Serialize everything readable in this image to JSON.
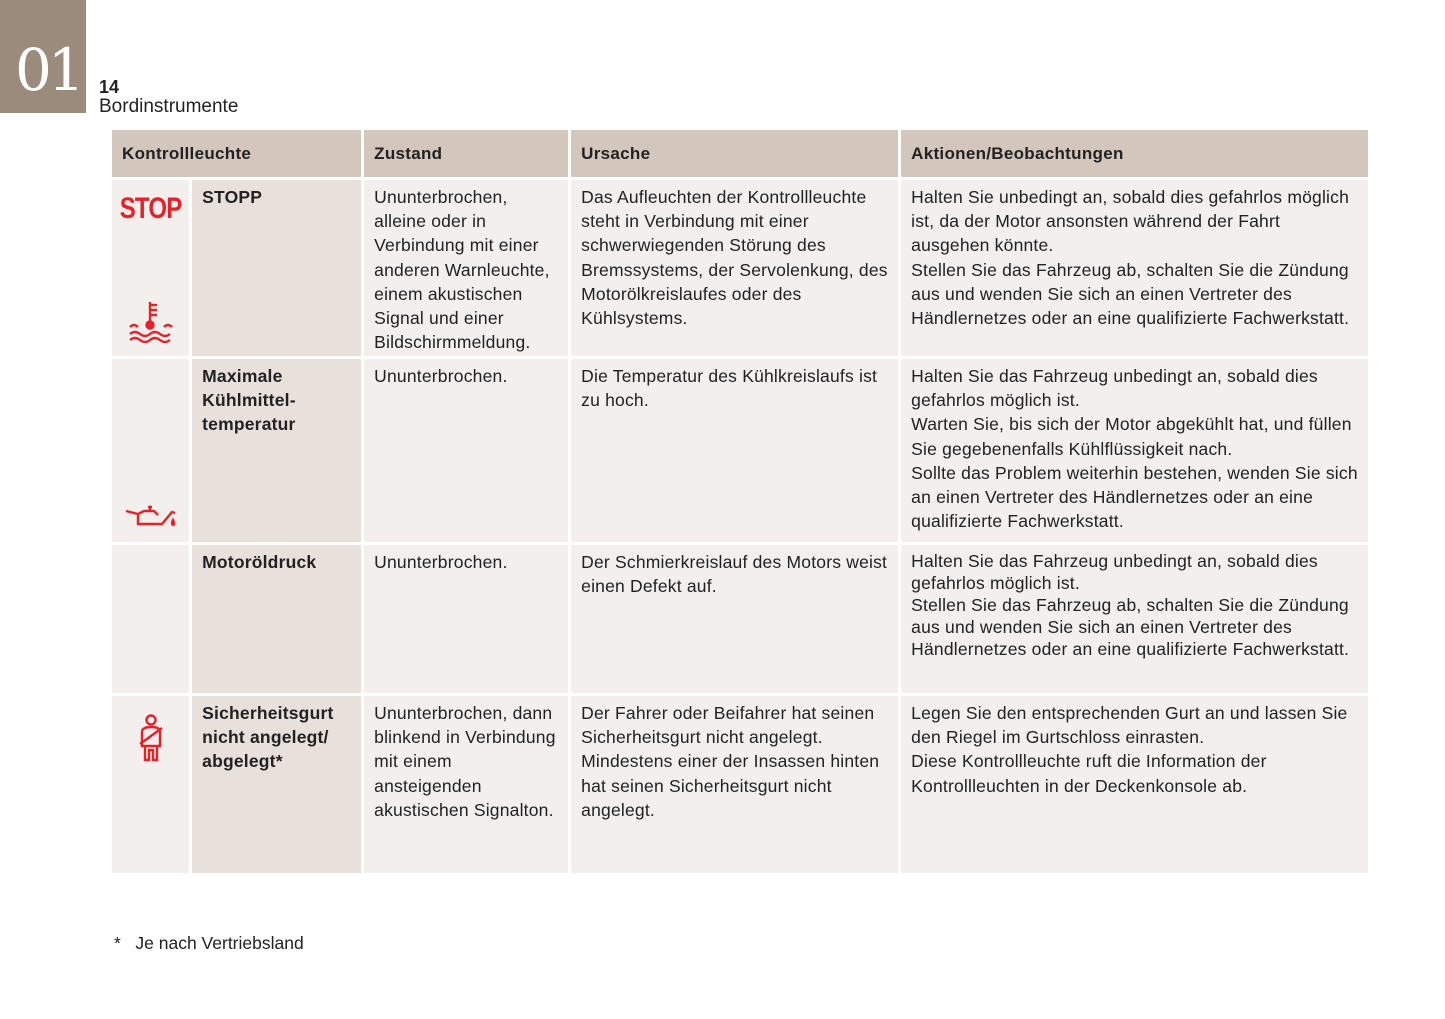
{
  "chapter": "01",
  "page_number": "14",
  "section_title": "Bordinstrumente",
  "accent_color": "#e5222a",
  "table": {
    "headers": [
      "Kontrollleuchte",
      "Zustand",
      "Ursache",
      "Aktionen/Beobachtungen"
    ],
    "rows": [
      {
        "icon": "stop-icon",
        "icon_text": "STOP",
        "name": "STOPP",
        "zustand": "Ununterbrochen, alleine oder in Verbindung mit einer anderen Warnleuchte, einem akustischen Signal und einer Bildschirmmeldung.",
        "ursache": "Das Aufleuchten der Kontrollleuchte steht in Verbindung mit einer schwerwiegenden Störung des Bremssystems, der Servolenkung, des Motorölkreislaufes oder des Kühlsystems.",
        "aktionen": "Halten Sie unbedingt an, sobald dies gefahrlos möglich ist, da der Motor ansonsten während der Fahrt ausgehen könnte.\nStellen Sie das Fahrzeug ab, schalten Sie die Zündung aus und wenden Sie sich an einen Vertreter des Händlernetzes oder an eine qualifizierte Fachwerkstatt."
      },
      {
        "icon": "coolant-temperature-icon",
        "name": "Maximale Kühlmittel-temperatur",
        "zustand": "Ununterbrochen.",
        "ursache": "Die Temperatur des Kühlkreislaufs ist zu hoch.",
        "aktionen": "Halten Sie das Fahrzeug unbedingt an, sobald dies gefahrlos möglich ist.\nWarten Sie, bis sich der Motor abgekühlt hat, und füllen Sie gegebenenfalls Kühlflüssigkeit nach.\nSollte das Problem weiterhin bestehen, wenden Sie sich an einen Vertreter des Händlernetzes oder an eine qualifizierte Fachwerkstatt."
      },
      {
        "icon": "oil-pressure-icon",
        "name": "Motoröldruck",
        "zustand": "Ununterbrochen.",
        "ursache": "Der Schmierkreislauf des Motors weist einen Defekt auf.",
        "aktionen": "Halten Sie das Fahrzeug unbedingt an, sobald dies gefahrlos möglich ist.\nStellen Sie das Fahrzeug ab, schalten Sie die Zündung aus und wenden Sie sich an einen Vertreter des Händlernetzes oder an eine qualifizierte Fachwerkstatt."
      },
      {
        "icon": "seatbelt-icon",
        "name": "Sicherheitsgurt nicht angelegt/ abgelegt*",
        "zustand": "Ununterbrochen, dann blinkend in Verbindung mit einem ansteigenden akustischen Signalton.",
        "ursache": "Der Fahrer oder Beifahrer hat seinen Sicherheitsgurt nicht angelegt.\nMindestens einer der Insassen hinten hat seinen Sicherheitsgurt nicht angelegt.",
        "aktionen": "Legen Sie den entsprechenden Gurt an und lassen Sie den Riegel im Gurtschloss einrasten.\nDiese Kontrollleuchte ruft die Information der Kontrollleuchten in der Deckenkonsole ab."
      }
    ]
  },
  "footnote": "*   Je nach Vertriebsland"
}
